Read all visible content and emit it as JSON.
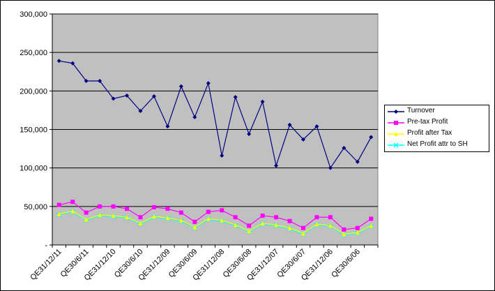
{
  "chart_data": {
    "type": "line",
    "title": "",
    "xlabel": "",
    "ylabel": "",
    "ylim": [
      0,
      300000
    ],
    "yticks": [
      0,
      50000,
      100000,
      150000,
      200000,
      250000,
      300000
    ],
    "ytick_labels": [
      "-",
      "50,000",
      "100,000",
      "150,000",
      "200,000",
      "250,000",
      "300,000"
    ],
    "grid": true,
    "legend_position": "right",
    "x_tick_labels": [
      "QE31/12/11",
      "QE30/6/11",
      "QE31/12/10",
      "QE30/6/10",
      "QE31/12/09",
      "QE30/6/09",
      "QE31/12/08",
      "QE30/6/08",
      "QE31/12/07",
      "QE30/6/07",
      "QE31/12/06",
      "QE30/6/06"
    ],
    "series": [
      {
        "name": "Turnover",
        "color": "#000080",
        "marker": "diamond",
        "values": [
          239000,
          236000,
          213000,
          213000,
          190000,
          194000,
          174000,
          193000,
          154000,
          206000,
          166000,
          210000,
          116000,
          192000,
          144000,
          186000,
          103000,
          156000,
          137000,
          154000,
          100000,
          126000,
          108000,
          140000
        ]
      },
      {
        "name": "Pre-tax Profit",
        "color": "#ff00ff",
        "marker": "square",
        "values": [
          52000,
          56000,
          42000,
          50000,
          50000,
          47000,
          36000,
          49000,
          47000,
          42000,
          30000,
          43000,
          45000,
          36000,
          25000,
          38000,
          36000,
          31000,
          22000,
          36000,
          36000,
          20000,
          22000,
          34000
        ]
      },
      {
        "name": "Profit after Tax",
        "color": "#ffff00",
        "marker": "triangle",
        "values": [
          40000,
          44000,
          33000,
          39000,
          38000,
          36000,
          28000,
          37000,
          35000,
          32000,
          23000,
          34000,
          32000,
          26000,
          18000,
          28000,
          26000,
          22000,
          15000,
          27000,
          25000,
          14000,
          16000,
          25000
        ]
      },
      {
        "name": "Net Profit attr to SH",
        "color": "#00ffff",
        "marker": "x",
        "values": [
          39000,
          43000,
          32000,
          38000,
          37000,
          35000,
          27000,
          36000,
          34000,
          31000,
          22000,
          33000,
          31000,
          25000,
          17000,
          27000,
          25000,
          21000,
          14000,
          26000,
          24000,
          13000,
          15000,
          24000
        ]
      }
    ]
  }
}
